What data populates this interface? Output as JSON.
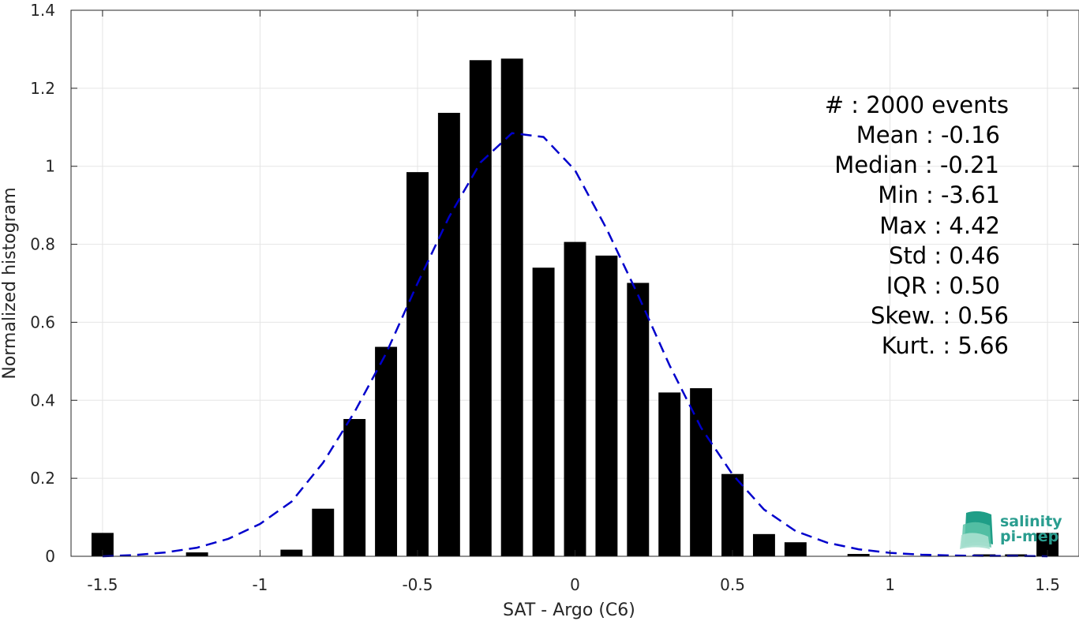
{
  "chart_data": {
    "type": "bar",
    "xlabel": "SAT - Argo (C6)",
    "ylabel": "Normalized histogram",
    "xlim": [
      -1.6,
      1.6
    ],
    "ylim": [
      0,
      1.4
    ],
    "xticks": [
      -1.5,
      -1,
      -0.5,
      0,
      0.5,
      1,
      1.5
    ],
    "xtick_labels": [
      "-1.5",
      "-1",
      "-0.5",
      "0",
      "0.5",
      "1",
      "1.5"
    ],
    "yticks": [
      0,
      0.2,
      0.4,
      0.6,
      0.8,
      1,
      1.2,
      1.4
    ],
    "ytick_labels": [
      "0",
      "0.2",
      "0.4",
      "0.6",
      "0.8",
      "1",
      "1.2",
      "1.4"
    ],
    "grid": true,
    "bar_color": "#000000",
    "fit_color": "#0000cc",
    "bins": {
      "x": [
        -1.5,
        -1.4,
        -1.3,
        -1.2,
        -1.1,
        -1.0,
        -0.9,
        -0.8,
        -0.7,
        -0.6,
        -0.5,
        -0.4,
        -0.3,
        -0.2,
        -0.1,
        0.0,
        0.1,
        0.2,
        0.3,
        0.4,
        0.5,
        0.6,
        0.7,
        0.8,
        0.9,
        1.0,
        1.1,
        1.2,
        1.3,
        1.4,
        1.5
      ],
      "values": [
        0.06,
        0,
        0,
        0.01,
        0,
        0,
        0.017,
        0.122,
        0.352,
        0.537,
        0.985,
        1.137,
        1.272,
        1.276,
        0.74,
        0.806,
        0.771,
        0.701,
        0.42,
        0.431,
        0.211,
        0.057,
        0.036,
        0,
        0.006,
        0,
        0,
        0,
        0.005,
        0.005,
        0.06
      ]
    },
    "fit": {
      "x": [
        -1.5,
        -1.4,
        -1.3,
        -1.2,
        -1.1,
        -1.0,
        -0.9,
        -0.8,
        -0.7,
        -0.6,
        -0.5,
        -0.4,
        -0.3,
        -0.2,
        -0.1,
        0.0,
        0.1,
        0.2,
        0.3,
        0.4,
        0.5,
        0.6,
        0.7,
        0.8,
        0.9,
        1.0,
        1.1,
        1.2,
        1.3,
        1.4,
        1.5
      ],
      "values": [
        0.0,
        0.003,
        0.01,
        0.022,
        0.045,
        0.083,
        0.14,
        0.24,
        0.37,
        0.52,
        0.7,
        0.87,
        1.01,
        1.085,
        1.075,
        0.99,
        0.84,
        0.67,
        0.49,
        0.33,
        0.21,
        0.12,
        0.065,
        0.035,
        0.018,
        0.009,
        0.004,
        0.002,
        0.001,
        0.001,
        0.0
      ]
    }
  },
  "stats": [
    {
      "label": "#  : 2000 events"
    },
    {
      "label": "Mean : -0.16"
    },
    {
      "label": "Median : -0.21"
    },
    {
      "label": "Min : -3.61"
    },
    {
      "label": "Max : 4.42"
    },
    {
      "label": "Std : 0.46"
    },
    {
      "label": "IQR : 0.50"
    },
    {
      "label": "Skew. : 0.56"
    },
    {
      "label": "Kurt. : 5.66"
    }
  ],
  "logo": {
    "line1": "salinity",
    "line2": "pi-mep"
  }
}
